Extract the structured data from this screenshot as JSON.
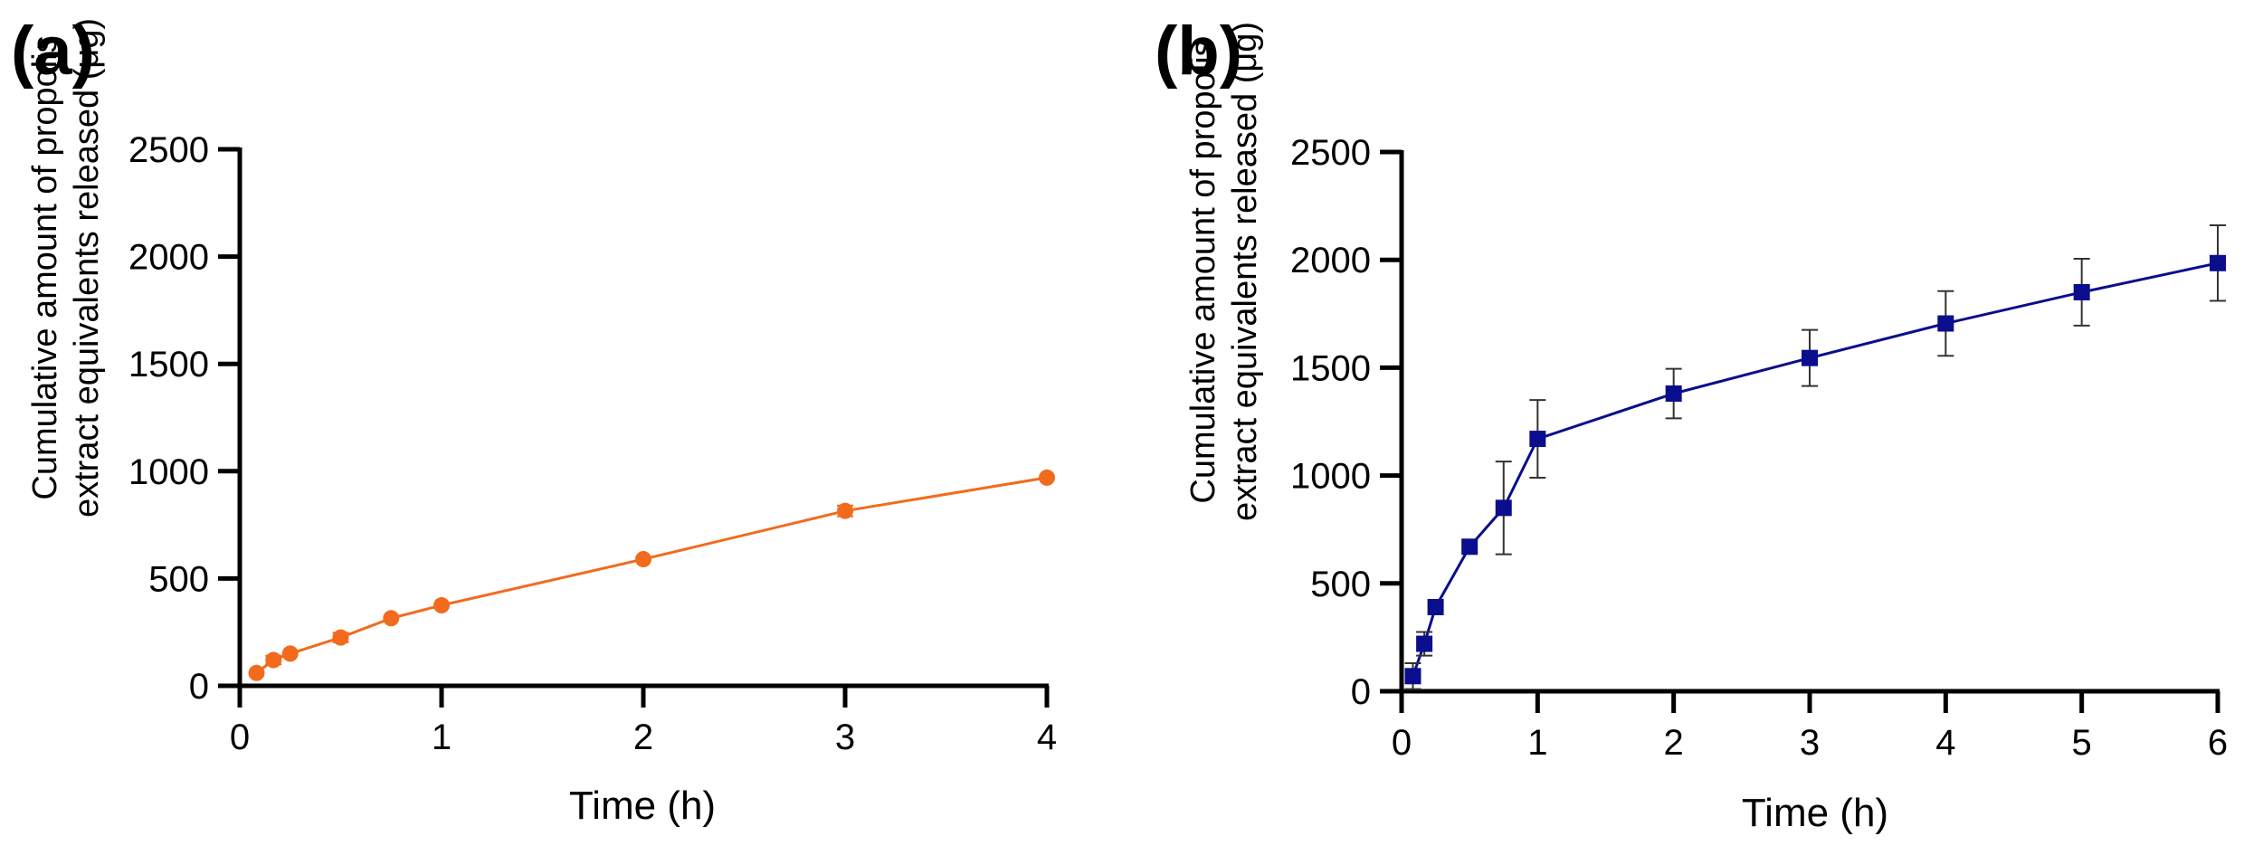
{
  "chart_data": [
    {
      "panel_label": "(a)",
      "type": "line",
      "marker": "circle",
      "color": "#F26B1D",
      "xlabel": "Time  (h)",
      "ylabel_lines": [
        "Cumulative amount of propolis",
        "extract equivalents released (μg)"
      ],
      "xlim": [
        0,
        4
      ],
      "ylim": [
        0,
        2500
      ],
      "xticks": [
        "0",
        "1",
        "2",
        "3",
        "4"
      ],
      "yticks": [
        "0",
        "500",
        "1000",
        "1500",
        "2000",
        "2500"
      ],
      "x": [
        0.083,
        0.167,
        0.25,
        0.5,
        0.75,
        1,
        2,
        3,
        4
      ],
      "y": [
        60,
        120,
        150,
        225,
        315,
        375,
        590,
        815,
        970
      ],
      "error": [
        0,
        20,
        0,
        22,
        0,
        0,
        0,
        25,
        0
      ]
    },
    {
      "panel_label": "(b)",
      "type": "line",
      "marker": "square",
      "color": "#0A0E8C",
      "xlabel": "Time (h)",
      "ylabel_lines": [
        "Cumulative amount of propolis",
        "extract equivalents released (μg)"
      ],
      "xlim": [
        0,
        6
      ],
      "ylim": [
        0,
        2500
      ],
      "xticks": [
        "0",
        "1",
        "2",
        "3",
        "4",
        "5",
        "6"
      ],
      "yticks": [
        "0",
        "500",
        "1000",
        "1500",
        "2000",
        "2500"
      ],
      "x": [
        0.083,
        0.167,
        0.25,
        0.5,
        0.75,
        1,
        2,
        3,
        4,
        5,
        6
      ],
      "y": [
        70,
        220,
        390,
        670,
        850,
        1170,
        1380,
        1545,
        1705,
        1850,
        1985
      ],
      "error": [
        60,
        55,
        0,
        0,
        215,
        180,
        115,
        130,
        150,
        155,
        175
      ]
    }
  ]
}
